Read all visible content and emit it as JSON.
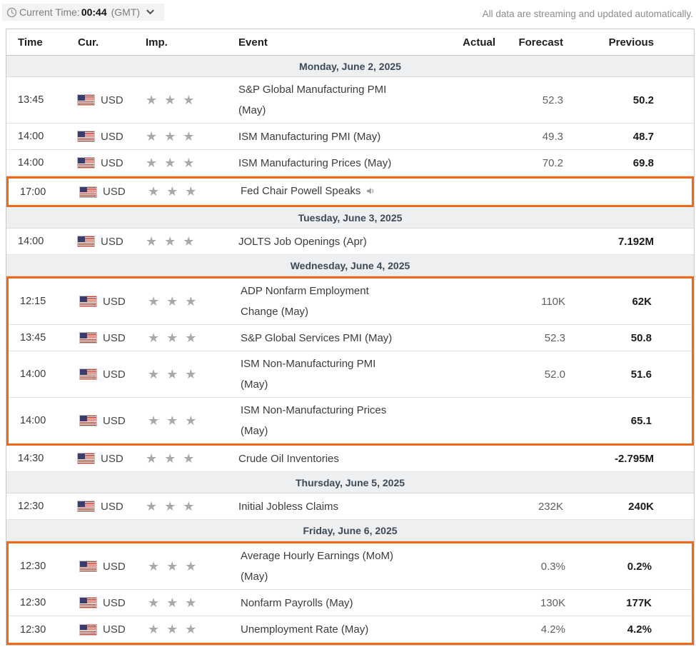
{
  "toolbar": {
    "current_time_label": "Current Time:",
    "current_time_value": "00:44",
    "timezone": "(GMT)",
    "streaming_note": "All data are streaming and updated automatically."
  },
  "table": {
    "columns": [
      "Time",
      "Cur.",
      "Imp.",
      "Event",
      "Actual",
      "Forecast",
      "Previous"
    ],
    "highlight_color": "#ee6a17",
    "star_color": "#a9a9a9",
    "days": [
      {
        "date": "Monday, June 2, 2025",
        "events": [
          {
            "time": "13:45",
            "currency": "USD",
            "flag": "us-flag",
            "importance": 3,
            "event_lines": [
              "S&P Global Manufacturing PMI",
              "(May)"
            ],
            "actual": "",
            "forecast": "52.3",
            "previous": "50.2",
            "highlighted": false,
            "speaker_icon": false
          },
          {
            "time": "14:00",
            "currency": "USD",
            "flag": "us-flag",
            "importance": 3,
            "event_lines": [
              "ISM Manufacturing PMI (May)"
            ],
            "actual": "",
            "forecast": "49.3",
            "previous": "48.7",
            "highlighted": false,
            "speaker_icon": false
          },
          {
            "time": "14:00",
            "currency": "USD",
            "flag": "us-flag",
            "importance": 3,
            "event_lines": [
              "ISM Manufacturing Prices (May)"
            ],
            "actual": "",
            "forecast": "70.2",
            "previous": "69.8",
            "highlighted": false,
            "speaker_icon": false
          },
          {
            "time": "17:00",
            "currency": "USD",
            "flag": "us-flag",
            "importance": 3,
            "event_lines": [
              "Fed Chair Powell Speaks"
            ],
            "actual": "",
            "forecast": "",
            "previous": "",
            "highlighted": true,
            "speaker_icon": true
          }
        ]
      },
      {
        "date": "Tuesday, June 3, 2025",
        "events": [
          {
            "time": "14:00",
            "currency": "USD",
            "flag": "us-flag",
            "importance": 3,
            "event_lines": [
              "JOLTS Job Openings (Apr)"
            ],
            "actual": "",
            "forecast": "",
            "previous": "7.192M",
            "highlighted": false,
            "speaker_icon": false
          }
        ]
      },
      {
        "date": "Wednesday, June 4, 2025",
        "events": [
          {
            "time": "12:15",
            "currency": "USD",
            "flag": "us-flag",
            "importance": 3,
            "event_lines": [
              "ADP Nonfarm Employment",
              "Change (May)"
            ],
            "actual": "",
            "forecast": "110K",
            "previous": "62K",
            "highlighted": true,
            "speaker_icon": false
          },
          {
            "time": "13:45",
            "currency": "USD",
            "flag": "us-flag",
            "importance": 3,
            "event_lines": [
              "S&P Global Services PMI (May)"
            ],
            "actual": "",
            "forecast": "52.3",
            "previous": "50.8",
            "highlighted": true,
            "speaker_icon": false
          },
          {
            "time": "14:00",
            "currency": "USD",
            "flag": "us-flag",
            "importance": 3,
            "event_lines": [
              "ISM Non-Manufacturing PMI",
              "(May)"
            ],
            "actual": "",
            "forecast": "52.0",
            "previous": "51.6",
            "highlighted": true,
            "speaker_icon": false
          },
          {
            "time": "14:00",
            "currency": "USD",
            "flag": "us-flag",
            "importance": 3,
            "event_lines": [
              "ISM Non-Manufacturing Prices",
              "(May)"
            ],
            "actual": "",
            "forecast": "",
            "previous": "65.1",
            "highlighted": true,
            "speaker_icon": false
          },
          {
            "time": "14:30",
            "currency": "USD",
            "flag": "us-flag",
            "importance": 3,
            "event_lines": [
              "Crude Oil Inventories"
            ],
            "actual": "",
            "forecast": "",
            "previous": "-2.795M",
            "highlighted": false,
            "speaker_icon": false
          }
        ]
      },
      {
        "date": "Thursday, June 5, 2025",
        "events": [
          {
            "time": "12:30",
            "currency": "USD",
            "flag": "us-flag",
            "importance": 3,
            "event_lines": [
              "Initial Jobless Claims"
            ],
            "actual": "",
            "forecast": "232K",
            "previous": "240K",
            "highlighted": false,
            "speaker_icon": false
          }
        ]
      },
      {
        "date": "Friday, June 6, 2025",
        "events": [
          {
            "time": "12:30",
            "currency": "USD",
            "flag": "us-flag",
            "importance": 3,
            "event_lines": [
              "Average Hourly Earnings (MoM)",
              "(May)"
            ],
            "actual": "",
            "forecast": "0.3%",
            "previous": "0.2%",
            "highlighted": true,
            "speaker_icon": false
          },
          {
            "time": "12:30",
            "currency": "USD",
            "flag": "us-flag",
            "importance": 3,
            "event_lines": [
              "Nonfarm Payrolls (May)"
            ],
            "actual": "",
            "forecast": "130K",
            "previous": "177K",
            "highlighted": true,
            "speaker_icon": false
          },
          {
            "time": "12:30",
            "currency": "USD",
            "flag": "us-flag",
            "importance": 3,
            "event_lines": [
              "Unemployment Rate (May)"
            ],
            "actual": "",
            "forecast": "4.2%",
            "previous": "4.2%",
            "highlighted": true,
            "speaker_icon": false
          }
        ]
      }
    ]
  }
}
